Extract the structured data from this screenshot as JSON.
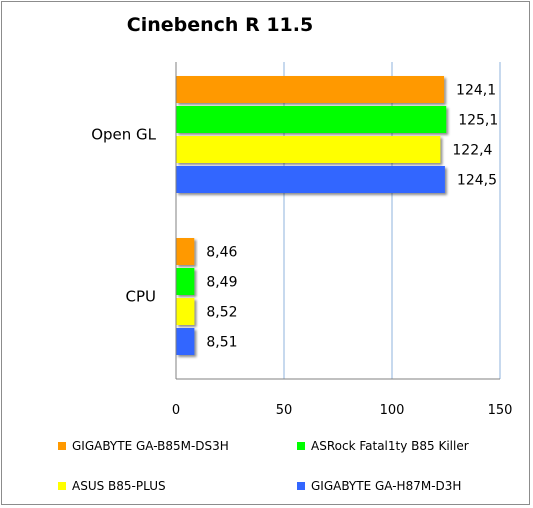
{
  "chart_data": {
    "type": "bar",
    "orientation": "horizontal",
    "title": "Cinebench R 11.5",
    "categories": [
      "Open GL",
      "CPU"
    ],
    "series": [
      {
        "name": "GIGABYTE GA-B85M-DS3H",
        "color": "#ff9900",
        "values": [
          124.1,
          8.46
        ],
        "labels": [
          "124,1",
          "8,46"
        ]
      },
      {
        "name": "ASRock Fatal1ty B85 Killer",
        "color": "#00ff00",
        "values": [
          125.1,
          8.49
        ],
        "labels": [
          "125,1",
          "8,49"
        ]
      },
      {
        "name": "ASUS B85-PLUS",
        "color": "#ffff00",
        "values": [
          122.4,
          8.52
        ],
        "labels": [
          "122,4",
          "8,52"
        ]
      },
      {
        "name": "GIGABYTE GA-H87M-D3H",
        "color": "#3366ff",
        "values": [
          124.5,
          8.51
        ],
        "labels": [
          "124,5",
          "8,51"
        ]
      }
    ],
    "xlim": [
      0,
      150
    ],
    "xticks": [
      "0",
      "50",
      "100",
      "150"
    ],
    "grid": true,
    "legend": "bottom"
  }
}
